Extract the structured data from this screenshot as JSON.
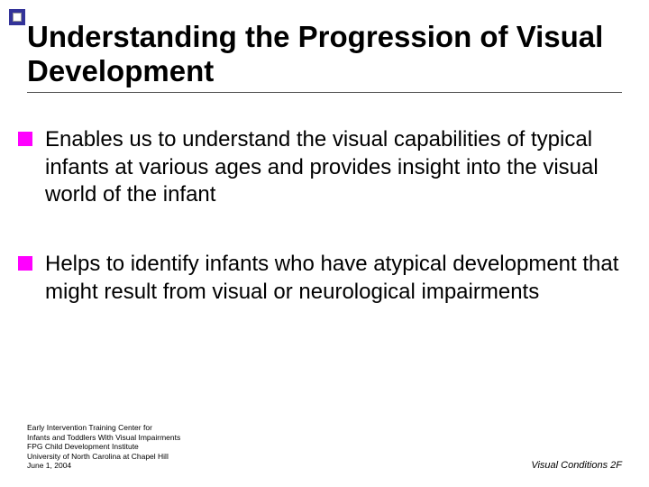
{
  "accent": {
    "box_color": "#333399",
    "inner_border": "#999999"
  },
  "title": "Understanding the Progression of Visual Development",
  "title_fontsize": 33,
  "title_color": "#000000",
  "bullets": {
    "marker_color": "#ff00ff",
    "text_color": "#000000",
    "text_fontsize": 24,
    "items": [
      "Enables us to understand the visual capabilities of typical infants at various ages and provides insight into the visual world of the infant",
      "Helps to identify infants who have atypical development that might result from visual or neurological impairments"
    ]
  },
  "footer": {
    "left_lines": [
      "Early Intervention Training Center for",
      "Infants and Toddlers With Visual Impairments",
      "FPG Child Development Institute",
      "University of North Carolina at Chapel Hill",
      "June 1, 2004"
    ],
    "right": "Visual Conditions 2F",
    "left_fontsize": 8.5,
    "right_fontsize": 11
  },
  "background_color": "#ffffff"
}
